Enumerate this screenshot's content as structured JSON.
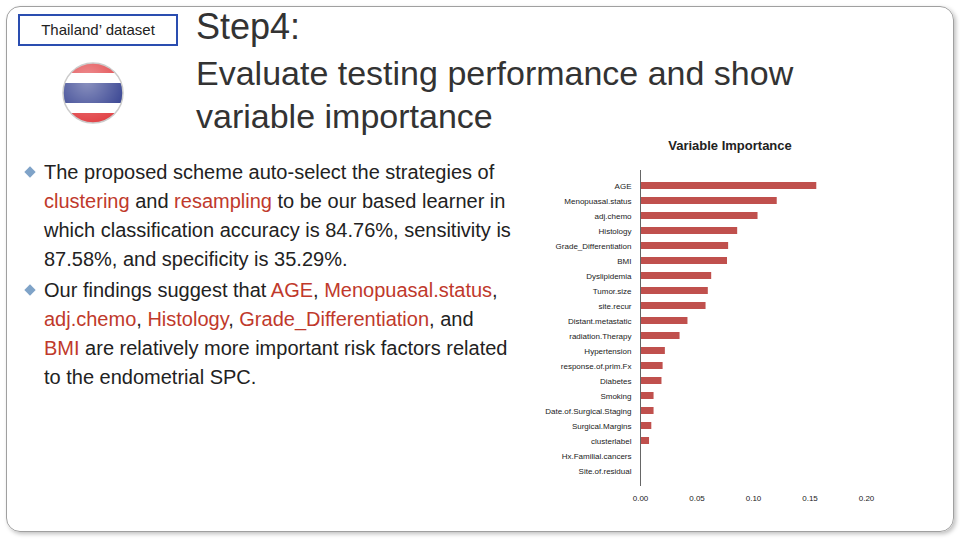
{
  "slide": {
    "badge": "Thailand’ dataset",
    "title": "Step4:",
    "subtitle": "Evaluate testing performance and show variable importance",
    "bullets": [
      [
        {
          "text": "The proposed scheme auto-select the strategies of "
        },
        {
          "text": "clustering",
          "color": "#c0392b"
        },
        {
          "text": " and "
        },
        {
          "text": "resampling",
          "color": "#c0392b"
        },
        {
          "text": " to be our based learner in which classification accuracy is 84.76%, sensitivity is 87.58%, and specificity is 35.29%."
        }
      ],
      [
        {
          "text": "Our findings suggest that  "
        },
        {
          "text": "AGE",
          "color": "#c0392b"
        },
        {
          "text": ", "
        },
        {
          "text": "Menopuasal.status",
          "color": "#c0392b"
        },
        {
          "text": ", "
        },
        {
          "text": "adj.chemo",
          "color": "#c0392b"
        },
        {
          "text": ", "
        },
        {
          "text": "Histology",
          "color": "#c0392b"
        },
        {
          "text": ", "
        },
        {
          "text": "Grade_Differentiation",
          "color": "#c0392b"
        },
        {
          "text": ", and "
        },
        {
          "text": "BMI",
          "color": "#c0392b"
        },
        {
          "text": " are relatively more important risk factors related to the endometrial SPC."
        }
      ]
    ]
  },
  "chart_data": {
    "type": "bar",
    "title": "Variable Importance",
    "orientation": "horizontal",
    "categories": [
      "AGE",
      "Menopuasal.status",
      "adj.chemo",
      "Histology",
      "Grade_Differentiation",
      "BMI",
      "Dyslipidemia",
      "Tumor.size",
      "site.recur",
      "Distant.metastatic",
      "radiation.Therapy",
      "Hypertension",
      "response.of.prim.Fx",
      "Diabetes",
      "Smoking",
      "Date.of.Surgical.Staging",
      "Surgical.Margins",
      "clusterlabel",
      "Hx.Familial.cancers",
      "Site.of.residual"
    ],
    "values": [
      0.156,
      0.121,
      0.104,
      0.086,
      0.078,
      0.077,
      0.063,
      0.06,
      0.058,
      0.042,
      0.035,
      0.022,
      0.02,
      0.019,
      0.012,
      0.012,
      0.01,
      0.008,
      0,
      0
    ],
    "color": "#c0504d",
    "xlim": [
      0,
      0.2
    ],
    "xticks": [
      0,
      0.05,
      0.1,
      0.15,
      0.2
    ],
    "grid": false
  }
}
